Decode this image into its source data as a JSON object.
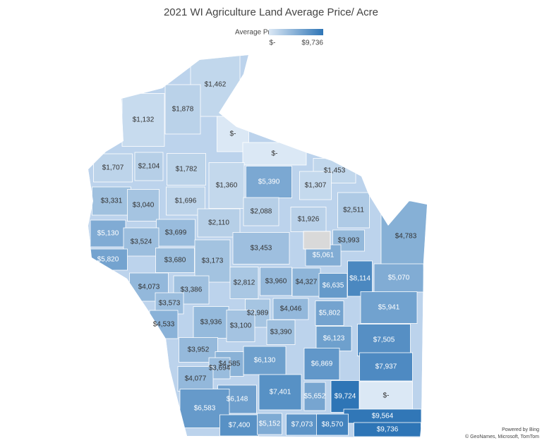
{
  "title": "2021 WI Agriculture Land Average Price/ Acre",
  "legend": {
    "title": "Average Price",
    "min_label": "$-",
    "max_label": "$9,736",
    "min": 0,
    "max": 9736
  },
  "regions": [
    {
      "label": "$1,462",
      "value": 1462
    },
    {
      "label": "$1,878",
      "value": 1878
    },
    {
      "label": "$1,132",
      "value": 1132
    },
    {
      "label": "$-",
      "value": 0
    },
    {
      "label": "$-",
      "value": 0
    },
    {
      "label": "$1,707",
      "value": 1707
    },
    {
      "label": "$2,104",
      "value": 2104
    },
    {
      "label": "$1,782",
      "value": 1782
    },
    {
      "label": "$1,453",
      "value": 1453
    },
    {
      "label": "$1,360",
      "value": 1360
    },
    {
      "label": "$5,390",
      "value": 5390
    },
    {
      "label": "$1,307",
      "value": 1307
    },
    {
      "label": "$3,331",
      "value": 3331
    },
    {
      "label": "$3,040",
      "value": 3040
    },
    {
      "label": "$1,696",
      "value": 1696
    },
    {
      "label": "$2,511",
      "value": 2511
    },
    {
      "label": "$2,088",
      "value": 2088
    },
    {
      "label": "$1,926",
      "value": 1926
    },
    {
      "label": "$2,110",
      "value": 2110
    },
    {
      "label": "$4,783",
      "value": 4783
    },
    {
      "label": "$5,130",
      "value": 5130
    },
    {
      "label": "$3,699",
      "value": 3699
    },
    {
      "label": "$3,993",
      "value": 3993
    },
    {
      "label": "$3,524",
      "value": 3524
    },
    {
      "label": "$3,453",
      "value": 3453
    },
    {
      "label": "$5,061",
      "value": 5061
    },
    {
      "label": "$5,820",
      "value": 5820
    },
    {
      "label": "$3,680",
      "value": 3680
    },
    {
      "label": "$3,173",
      "value": 3173
    },
    {
      "label": "$5,070",
      "value": 5070
    },
    {
      "label": "$8,114",
      "value": 8114
    },
    {
      "label": "$4,073",
      "value": 4073
    },
    {
      "label": "$2,812",
      "value": 2812
    },
    {
      "label": "$3,960",
      "value": 3960
    },
    {
      "label": "$4,327",
      "value": 4327
    },
    {
      "label": "$6,635",
      "value": 6635
    },
    {
      "label": "$3,386",
      "value": 3386
    },
    {
      "label": "$3,573",
      "value": 3573
    },
    {
      "label": "$5,941",
      "value": 5941
    },
    {
      "label": "$4,046",
      "value": 4046
    },
    {
      "label": "$2,989",
      "value": 2989
    },
    {
      "label": "$5,802",
      "value": 5802
    },
    {
      "label": "$4,533",
      "value": 4533
    },
    {
      "label": "$3,936",
      "value": 3936
    },
    {
      "label": "$3,100",
      "value": 3100
    },
    {
      "label": "$3,390",
      "value": 3390
    },
    {
      "label": "$6,123",
      "value": 6123
    },
    {
      "label": "$7,505",
      "value": 7505
    },
    {
      "label": "$3,952",
      "value": 3952
    },
    {
      "label": "$6,130",
      "value": 6130
    },
    {
      "label": "$4,585",
      "value": 4585
    },
    {
      "label": "$6,869",
      "value": 6869
    },
    {
      "label": "$7,937",
      "value": 7937
    },
    {
      "label": "$3,694",
      "value": 3694
    },
    {
      "label": "$4,077",
      "value": 4077
    },
    {
      "label": "$7,401",
      "value": 7401
    },
    {
      "label": "$6,148",
      "value": 6148
    },
    {
      "label": "$5,652",
      "value": 5652
    },
    {
      "label": "$9,724",
      "value": 9724
    },
    {
      "label": "$-",
      "value": 0
    },
    {
      "label": "$6,583",
      "value": 6583
    },
    {
      "label": "$9,564",
      "value": 9564
    },
    {
      "label": "$7,400",
      "value": 7400
    },
    {
      "label": "$5,152",
      "value": 5152
    },
    {
      "label": "$7,073",
      "value": 7073
    },
    {
      "label": "$8,570",
      "value": 8570
    },
    {
      "label": "$9,736",
      "value": 9736
    }
  ],
  "attribution": [
    "Powered by Bing",
    "© GeoNames, Microsoft, TomTom"
  ]
}
